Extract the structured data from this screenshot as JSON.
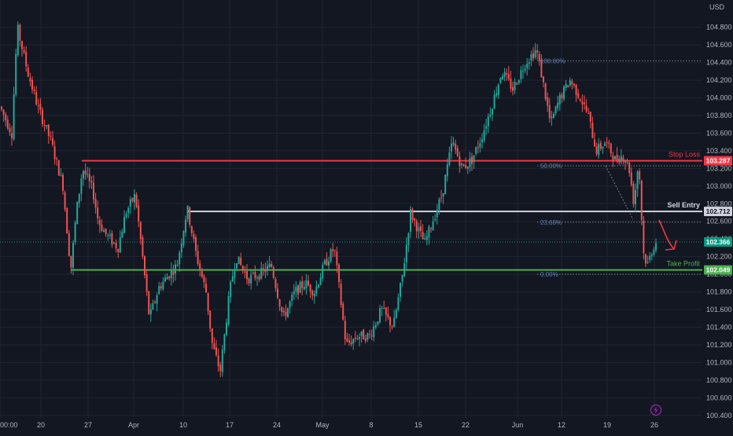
{
  "currency": "USD",
  "chart_data": {
    "type": "candlestick",
    "instrument_unit": "USD",
    "ylim": [
      100.3,
      105.02
    ],
    "y_ticks": [
      "104.800",
      "104.600",
      "104.400",
      "104.200",
      "104.000",
      "103.800",
      "103.600",
      "103.400",
      "103.200",
      "103.000",
      "102.800",
      "102.600",
      "102.400",
      "102.200",
      "102.000",
      "101.800",
      "101.600",
      "101.400",
      "101.200",
      "101.000",
      "100.800",
      "100.600",
      "100.400"
    ],
    "x_tick_labels": [
      "00:00",
      "20",
      "27",
      "Apr",
      "10",
      "17",
      "24",
      "May",
      "8",
      "15",
      "22",
      "Jun",
      "12",
      "19",
      "26"
    ],
    "price_path": [
      [
        0,
        103.9
      ],
      [
        15,
        103.6
      ],
      [
        22,
        104.8
      ],
      [
        35,
        104.3
      ],
      [
        48,
        103.9
      ],
      [
        65,
        103.5
      ],
      [
        80,
        103.0
      ],
      [
        90,
        102.05
      ],
      [
        97,
        102.7
      ],
      [
        105,
        103.2
      ],
      [
        118,
        102.95
      ],
      [
        125,
        102.6
      ],
      [
        135,
        102.45
      ],
      [
        150,
        102.3
      ],
      [
        160,
        102.7
      ],
      [
        172,
        102.9
      ],
      [
        180,
        102.3
      ],
      [
        190,
        101.5
      ],
      [
        202,
        101.85
      ],
      [
        215,
        102.0
      ],
      [
        225,
        102.1
      ],
      [
        238,
        102.75
      ],
      [
        250,
        102.2
      ],
      [
        262,
        101.8
      ],
      [
        270,
        101.2
      ],
      [
        280,
        100.9
      ],
      [
        292,
        101.8
      ],
      [
        300,
        102.2
      ],
      [
        315,
        101.95
      ],
      [
        330,
        102.0
      ],
      [
        345,
        102.1
      ],
      [
        360,
        101.5
      ],
      [
        375,
        101.8
      ],
      [
        388,
        101.9
      ],
      [
        400,
        101.8
      ],
      [
        412,
        102.1
      ],
      [
        425,
        102.3
      ],
      [
        440,
        101.2
      ],
      [
        455,
        101.3
      ],
      [
        470,
        101.3
      ],
      [
        485,
        101.6
      ],
      [
        500,
        101.4
      ],
      [
        512,
        102.0
      ],
      [
        522,
        102.7
      ],
      [
        532,
        102.5
      ],
      [
        540,
        102.35
      ],
      [
        550,
        102.6
      ],
      [
        562,
        102.9
      ],
      [
        575,
        103.5
      ],
      [
        588,
        103.2
      ],
      [
        600,
        103.3
      ],
      [
        612,
        103.55
      ],
      [
        625,
        103.9
      ],
      [
        638,
        104.3
      ],
      [
        652,
        104.1
      ],
      [
        668,
        104.4
      ],
      [
        682,
        104.55
      ],
      [
        690,
        104.2
      ],
      [
        700,
        103.7
      ],
      [
        712,
        104.0
      ],
      [
        725,
        104.2
      ],
      [
        738,
        104.0
      ],
      [
        748,
        103.8
      ],
      [
        758,
        103.4
      ],
      [
        770,
        103.5
      ],
      [
        782,
        103.3
      ],
      [
        792,
        103.35
      ],
      [
        800,
        103.2
      ],
      [
        806,
        102.8
      ],
      [
        812,
        103.3
      ],
      [
        818,
        102.25
      ],
      [
        823,
        102.1
      ],
      [
        830,
        102.3
      ],
      [
        836,
        102.4
      ]
    ],
    "levels": [
      {
        "name": "Stop Loss",
        "value": 103.287,
        "value_label": "103.287",
        "color": "#f23645"
      },
      {
        "name": "Sell Entry",
        "value": 102.712,
        "value_label": "102.712",
        "color": "#d1d4dc"
      },
      {
        "name": "Take Profit",
        "value": 102.049,
        "value_label": "102.049",
        "color": "#4caf50"
      }
    ],
    "current_price": {
      "value": 102.366,
      "value_label": "102.366",
      "color": "#089981"
    },
    "fibonacci": [
      {
        "label": "100.00%",
        "value": 104.42
      },
      {
        "label": "50.00%",
        "value": 103.23
      },
      {
        "label": "23.60%",
        "value": 102.59
      },
      {
        "label": "0.00%",
        "value": 102.0
      }
    ],
    "arrow_color": "#f23645"
  }
}
